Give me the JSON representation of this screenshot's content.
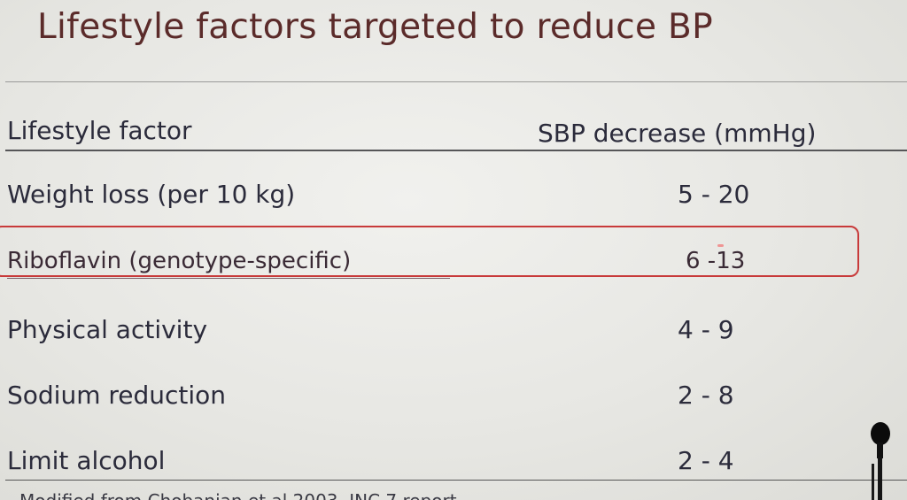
{
  "slide": {
    "title": "Lifestyle factors targeted to reduce BP",
    "table": {
      "headers": [
        "Lifestyle factor",
        "SBP decrease (mmHg)"
      ],
      "rows": [
        {
          "factor": "Weight loss (per 10 kg)",
          "sbp_decrease": "5 - 20"
        },
        {
          "factor": "Riboflavin (genotype-specific)",
          "sbp_decrease": "6 -13",
          "highlighted": true
        },
        {
          "factor": "Physical activity",
          "sbp_decrease": "4 - 9"
        },
        {
          "factor": "Sodium reduction",
          "sbp_decrease": "2 - 8"
        },
        {
          "factor": "Limit alcohol",
          "sbp_decrease": "2 - 4"
        }
      ]
    },
    "footnote": "Modified from Chobanian et al 2003, JNC 7 report"
  },
  "colors": {
    "title": "#5b2b2a",
    "text": "#2b2b3b",
    "highlight_box": "#c83a3a",
    "background": "#e9e9e5"
  },
  "icons": [
    "microphone-icon"
  ]
}
